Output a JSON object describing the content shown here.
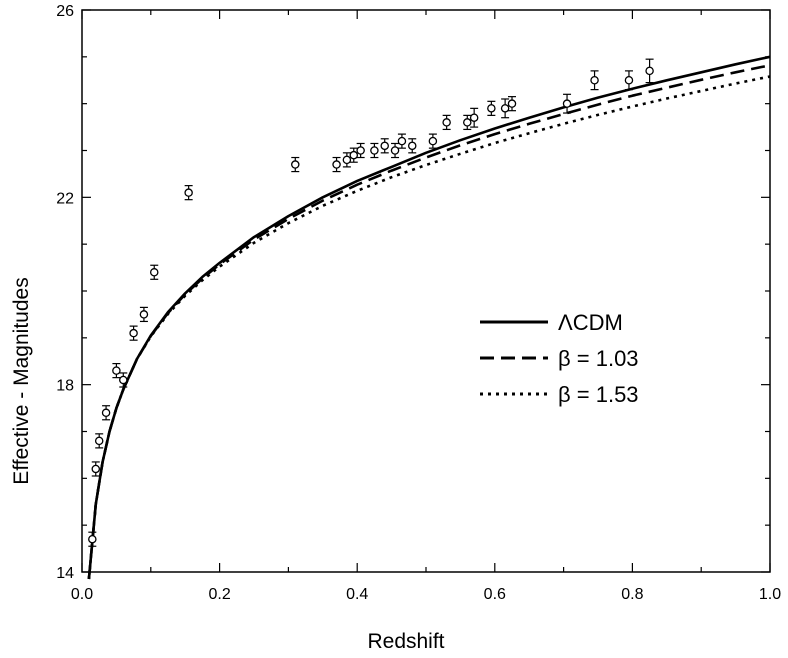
{
  "chart_data": {
    "type": "scatter",
    "title": "",
    "xlabel": "Redshift",
    "ylabel": "Effective - Magnitudes",
    "xlim": [
      0.0,
      1.0
    ],
    "ylim": [
      14,
      26
    ],
    "x_major_ticks": [
      0.0,
      0.2,
      0.4,
      0.6,
      0.8,
      1.0
    ],
    "x_tick_labels": [
      "0.0",
      "0.2",
      "0.4",
      "0.6",
      "0.8",
      "1.0"
    ],
    "y_major_ticks": [
      14,
      18,
      22,
      26
    ],
    "y_tick_labels": [
      "14",
      "18",
      "22",
      "26"
    ],
    "x_minor_step": 0.1,
    "y_minor_step": 1,
    "grid": false,
    "legend_position": "right-center",
    "series": [
      {
        "name": "ΛCDM",
        "kind": "line",
        "style": "solid",
        "x": [
          0.01,
          0.02,
          0.03,
          0.04,
          0.05,
          0.06,
          0.08,
          0.1,
          0.125,
          0.15,
          0.175,
          0.2,
          0.25,
          0.3,
          0.35,
          0.4,
          0.45,
          0.5,
          0.55,
          0.6,
          0.65,
          0.7,
          0.75,
          0.8,
          0.85,
          0.9,
          0.95,
          1.0
        ],
        "y": [
          13.85,
          15.45,
          16.35,
          17.0,
          17.5,
          17.9,
          18.55,
          19.05,
          19.55,
          19.95,
          20.3,
          20.6,
          21.15,
          21.6,
          22.0,
          22.35,
          22.65,
          22.95,
          23.22,
          23.47,
          23.7,
          23.92,
          24.13,
          24.32,
          24.5,
          24.67,
          24.84,
          25.0
        ]
      },
      {
        "name": "β = 1.03",
        "kind": "line",
        "style": "dashed",
        "x": [
          0.01,
          0.02,
          0.03,
          0.04,
          0.05,
          0.06,
          0.08,
          0.1,
          0.125,
          0.15,
          0.175,
          0.2,
          0.25,
          0.3,
          0.35,
          0.4,
          0.45,
          0.5,
          0.55,
          0.6,
          0.65,
          0.7,
          0.75,
          0.8,
          0.85,
          0.9,
          0.95,
          1.0
        ],
        "y": [
          13.85,
          15.45,
          16.35,
          17.0,
          17.5,
          17.9,
          18.55,
          19.04,
          19.53,
          19.93,
          20.27,
          20.57,
          21.1,
          21.54,
          21.93,
          22.27,
          22.57,
          22.85,
          23.11,
          23.35,
          23.57,
          23.78,
          23.98,
          24.17,
          24.34,
          24.51,
          24.67,
          24.82
        ]
      },
      {
        "name": "β = 1.53",
        "kind": "line",
        "style": "dotted",
        "x": [
          0.01,
          0.02,
          0.03,
          0.04,
          0.05,
          0.06,
          0.08,
          0.1,
          0.125,
          0.15,
          0.175,
          0.2,
          0.25,
          0.3,
          0.35,
          0.4,
          0.45,
          0.5,
          0.55,
          0.6,
          0.65,
          0.7,
          0.75,
          0.8,
          0.85,
          0.9,
          0.95,
          1.0
        ],
        "y": [
          13.85,
          15.45,
          16.35,
          17.0,
          17.5,
          17.9,
          18.55,
          19.03,
          19.51,
          19.9,
          20.23,
          20.52,
          21.03,
          21.45,
          21.82,
          22.14,
          22.43,
          22.69,
          22.93,
          23.16,
          23.37,
          23.57,
          23.76,
          23.94,
          24.11,
          24.27,
          24.43,
          24.58
        ]
      },
      {
        "kind": "points",
        "x": [
          0.015,
          0.02,
          0.025,
          0.035,
          0.05,
          0.06,
          0.075,
          0.09,
          0.105,
          0.155,
          0.31,
          0.37,
          0.385,
          0.395,
          0.405,
          0.425,
          0.44,
          0.455,
          0.465,
          0.48,
          0.51,
          0.53,
          0.56,
          0.57,
          0.595,
          0.615,
          0.625,
          0.705,
          0.745,
          0.795,
          0.825
        ],
        "y": [
          14.7,
          16.2,
          16.8,
          17.4,
          18.3,
          18.1,
          19.1,
          19.5,
          20.4,
          22.1,
          22.7,
          22.7,
          22.8,
          22.9,
          23.0,
          23.0,
          23.1,
          23.0,
          23.2,
          23.1,
          23.2,
          23.6,
          23.6,
          23.7,
          23.9,
          23.9,
          24.0,
          24.0,
          24.5,
          24.5,
          24.7
        ],
        "error": [
          0.15,
          0.15,
          0.15,
          0.15,
          0.15,
          0.15,
          0.15,
          0.15,
          0.15,
          0.15,
          0.15,
          0.15,
          0.15,
          0.15,
          0.15,
          0.15,
          0.15,
          0.15,
          0.15,
          0.15,
          0.15,
          0.15,
          0.15,
          0.2,
          0.15,
          0.2,
          0.15,
          0.2,
          0.2,
          0.2,
          0.25
        ]
      }
    ]
  }
}
